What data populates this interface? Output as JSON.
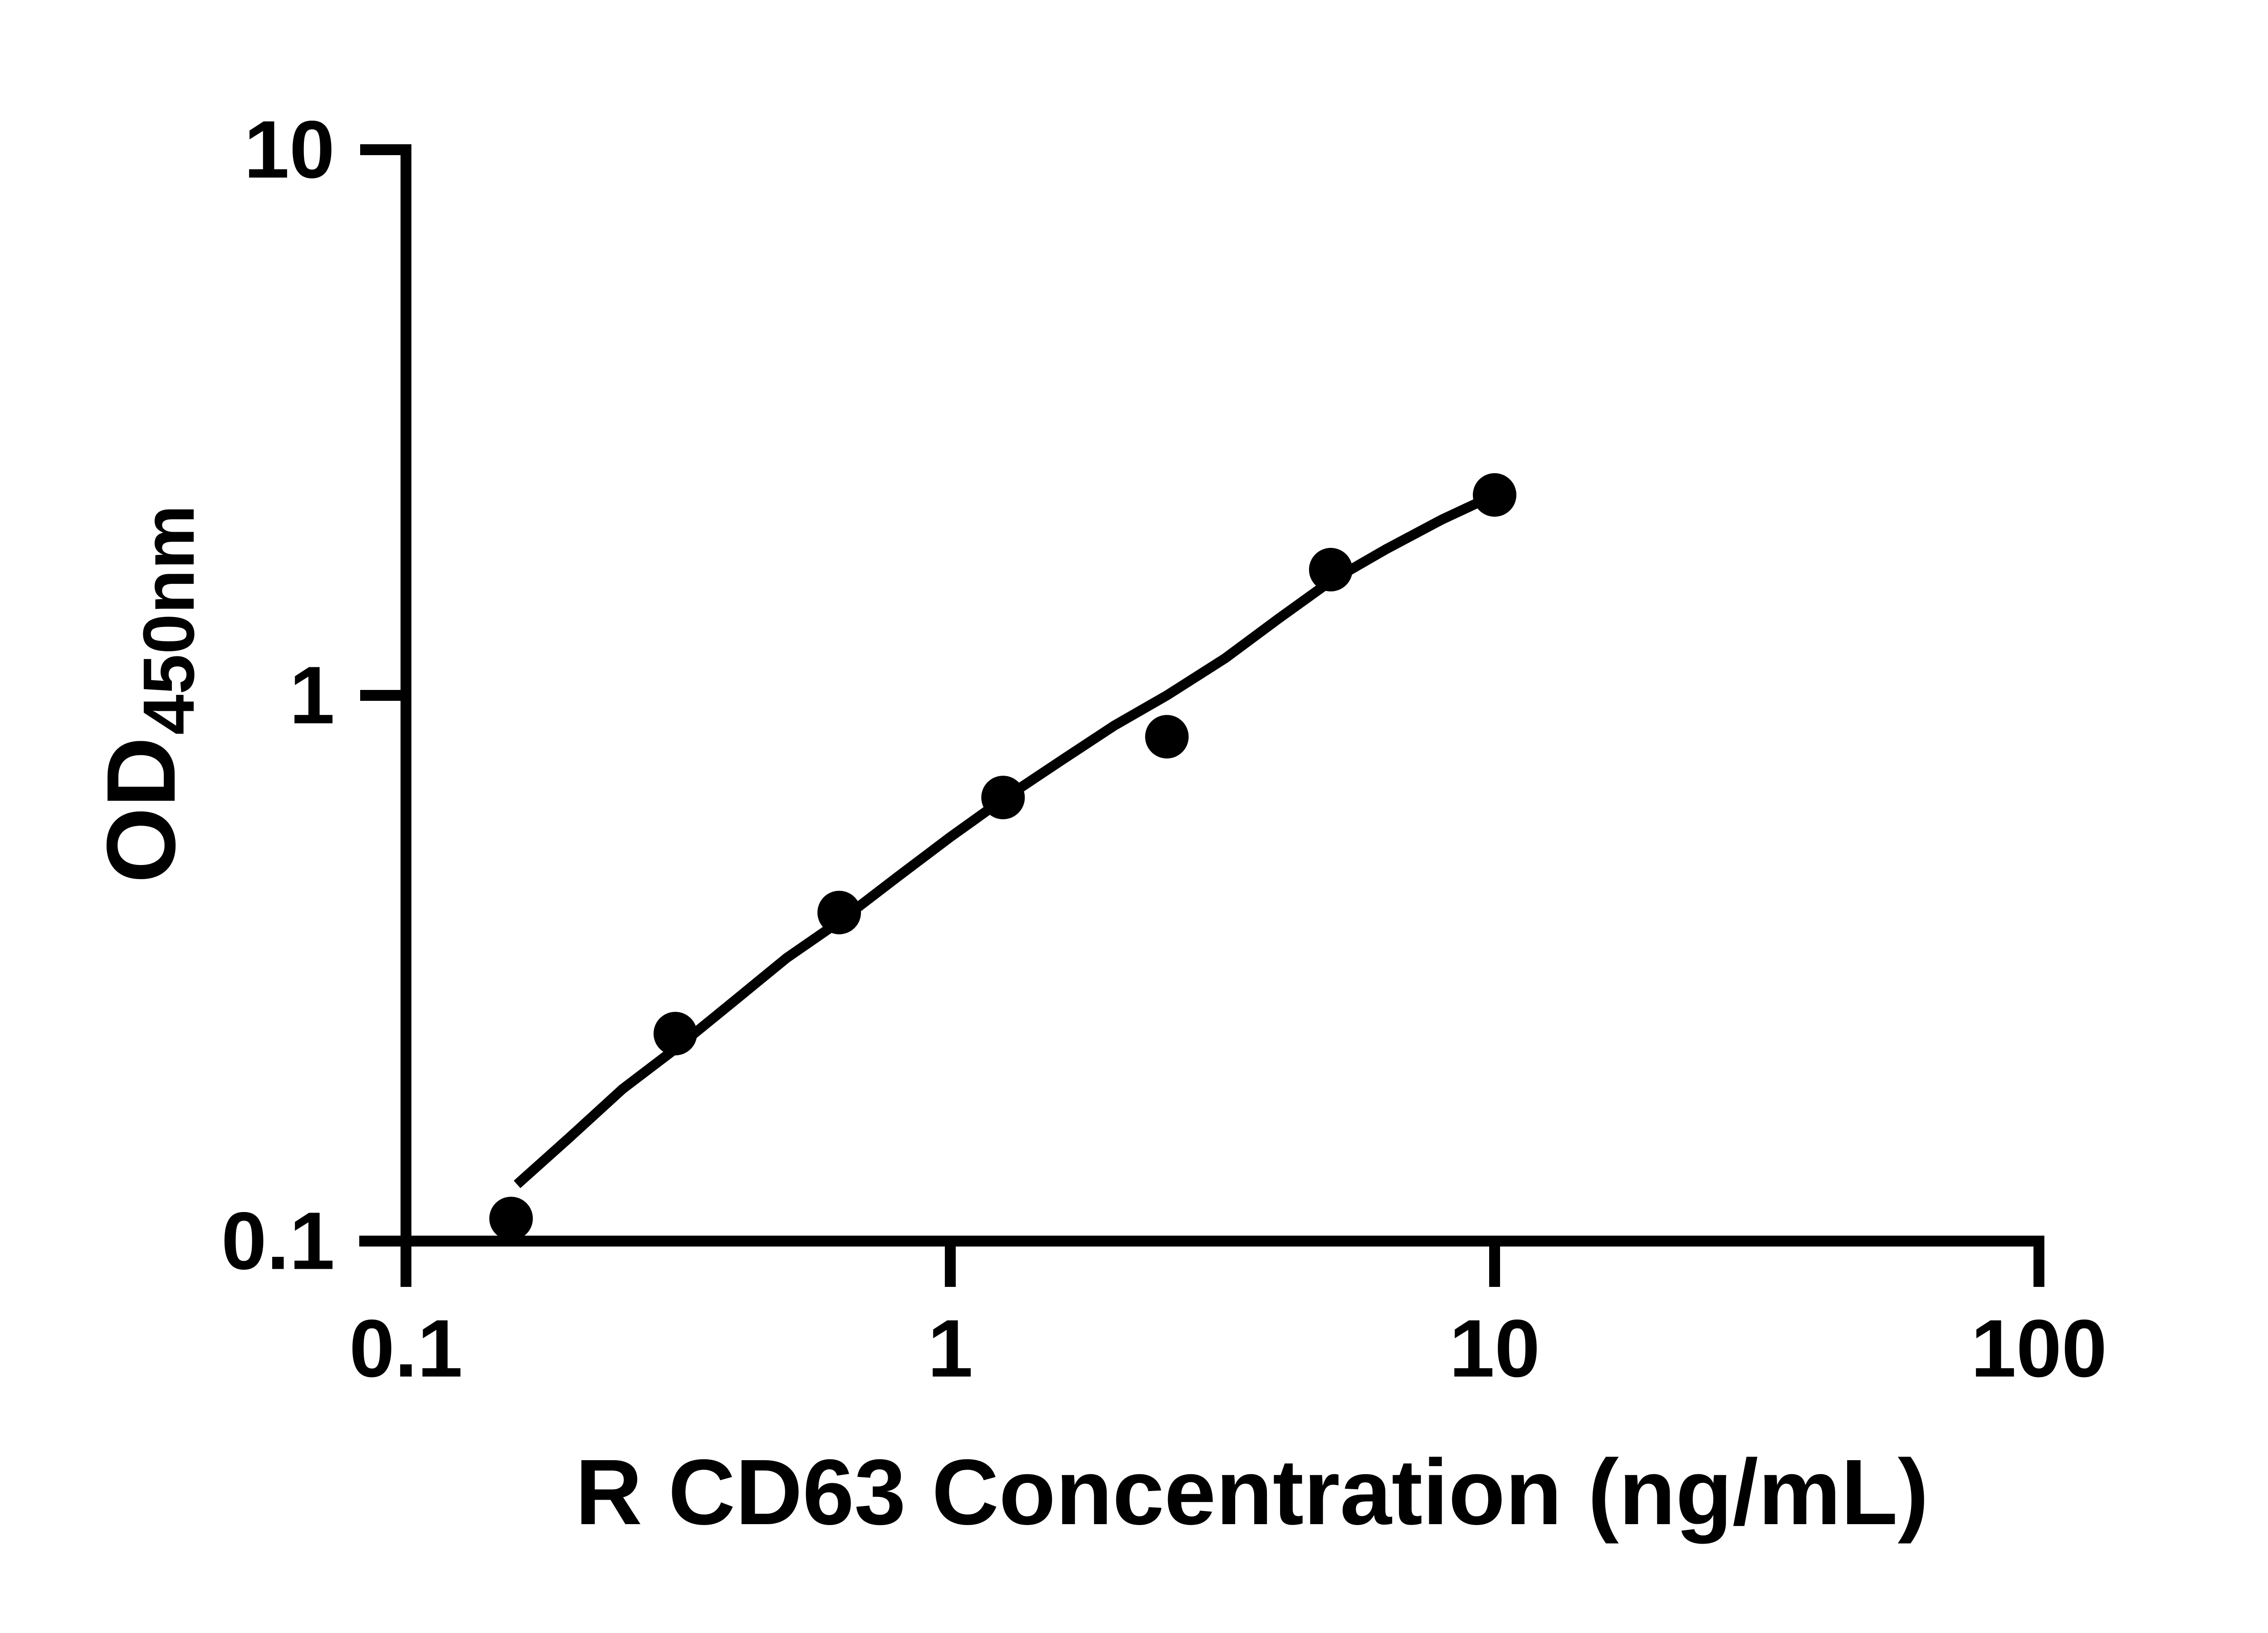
{
  "figure": {
    "background_color": "#ffffff",
    "ink_color": "#000000"
  },
  "chart_data": {
    "type": "scatter",
    "title": "",
    "xlabel": "R CD63 Concentration (ng/mL)",
    "ylabel_main": "OD",
    "ylabel_sub": "450nm",
    "x_scale": "log10",
    "y_scale": "log10",
    "xlim": [
      0.1,
      100
    ],
    "ylim": [
      0.1,
      10
    ],
    "x_ticks": [
      0.1,
      1,
      10,
      100
    ],
    "x_tick_labels": [
      "0.1",
      "1",
      "10",
      "100"
    ],
    "y_ticks": [
      0.1,
      1,
      10
    ],
    "y_tick_labels": [
      "0.1",
      "1",
      "10"
    ],
    "grid": false,
    "legend": null,
    "marker": "filled-circle",
    "series": [
      {
        "name": "standard-points",
        "kind": "scatter",
        "color": "#000000",
        "points": [
          {
            "x": 0.156,
            "y": 0.11
          },
          {
            "x": 0.3125,
            "y": 0.24
          },
          {
            "x": 0.625,
            "y": 0.4
          },
          {
            "x": 1.25,
            "y": 0.65
          },
          {
            "x": 2.5,
            "y": 0.84
          },
          {
            "x": 5,
            "y": 1.7
          },
          {
            "x": 10,
            "y": 2.33
          }
        ]
      },
      {
        "name": "fit-curve",
        "kind": "line",
        "color": "#000000",
        "points": [
          {
            "x": 0.16,
            "y": 0.127
          },
          {
            "x": 0.2,
            "y": 0.155
          },
          {
            "x": 0.25,
            "y": 0.19
          },
          {
            "x": 0.3125,
            "y": 0.225
          },
          {
            "x": 0.4,
            "y": 0.275
          },
          {
            "x": 0.5,
            "y": 0.33
          },
          {
            "x": 0.625,
            "y": 0.385
          },
          {
            "x": 0.8,
            "y": 0.465
          },
          {
            "x": 1.0,
            "y": 0.55
          },
          {
            "x": 1.25,
            "y": 0.645
          },
          {
            "x": 1.6,
            "y": 0.76
          },
          {
            "x": 2.0,
            "y": 0.88
          },
          {
            "x": 2.5,
            "y": 1.0
          },
          {
            "x": 3.2,
            "y": 1.17
          },
          {
            "x": 4.0,
            "y": 1.38
          },
          {
            "x": 5.0,
            "y": 1.62
          },
          {
            "x": 6.3,
            "y": 1.85
          },
          {
            "x": 8.0,
            "y": 2.1
          },
          {
            "x": 10.0,
            "y": 2.33
          }
        ]
      }
    ]
  }
}
